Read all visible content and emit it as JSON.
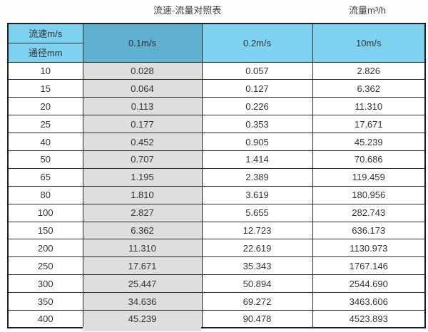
{
  "titles": {
    "main": "流速-流量对照表",
    "unit": "流量m³/h"
  },
  "table": {
    "corner_top": "流速m/s",
    "corner_bottom": "通径mm",
    "velocity_headers": [
      "0.1m/s",
      "0.2m/s",
      "10m/s"
    ],
    "rows": [
      [
        "10",
        "0.028",
        "0.057",
        "2.826"
      ],
      [
        "15",
        "0.064",
        "0.127",
        "6.362"
      ],
      [
        "20",
        "0.113",
        "0.226",
        "11.310"
      ],
      [
        "25",
        "0.177",
        "0.353",
        "17.671"
      ],
      [
        "40",
        "0.452",
        "0.905",
        "45.239"
      ],
      [
        "50",
        "0.707",
        "1.414",
        "70.686"
      ],
      [
        "65",
        "1.195",
        "2.389",
        "119.459"
      ],
      [
        "80",
        "1.810",
        "3.619",
        "180.956"
      ],
      [
        "100",
        "2.827",
        "5.655",
        "282.743"
      ],
      [
        "150",
        "6.362",
        "12.723",
        "636.173"
      ],
      [
        "200",
        "11.310",
        "22.619",
        "1130.973"
      ],
      [
        "250",
        "17.671",
        "35.343",
        "1767.146"
      ],
      [
        "300",
        "25.447",
        "50.894",
        "2544.690"
      ],
      [
        "350",
        "34.636",
        "69.272",
        "3463.606"
      ],
      [
        "400",
        "45.239",
        "90.478",
        "4523.893"
      ]
    ]
  },
  "colors": {
    "header_blue": "#7dd1f1",
    "header_dark_blue": "#5fafd1",
    "column_gray": "#dedede",
    "border": "#2b2b2b",
    "text": "#333333"
  },
  "chart_data": {
    "type": "table",
    "title": "流速-流量对照表",
    "unit_label": "流量m³/h",
    "columns": [
      "通径mm",
      "0.1m/s",
      "0.2m/s",
      "10m/s"
    ],
    "rows": [
      [
        10,
        0.028,
        0.057,
        2.826
      ],
      [
        15,
        0.064,
        0.127,
        6.362
      ],
      [
        20,
        0.113,
        0.226,
        11.31
      ],
      [
        25,
        0.177,
        0.353,
        17.671
      ],
      [
        40,
        0.452,
        0.905,
        45.239
      ],
      [
        50,
        0.707,
        1.414,
        70.686
      ],
      [
        65,
        1.195,
        2.389,
        119.459
      ],
      [
        80,
        1.81,
        3.619,
        180.956
      ],
      [
        100,
        2.827,
        5.655,
        282.743
      ],
      [
        150,
        6.362,
        12.723,
        636.173
      ],
      [
        200,
        11.31,
        22.619,
        1130.973
      ],
      [
        250,
        17.671,
        35.343,
        1767.146
      ],
      [
        300,
        25.447,
        50.894,
        2544.69
      ],
      [
        350,
        34.636,
        69.272,
        3463.606
      ],
      [
        400,
        45.239,
        90.478,
        4523.893
      ]
    ]
  }
}
